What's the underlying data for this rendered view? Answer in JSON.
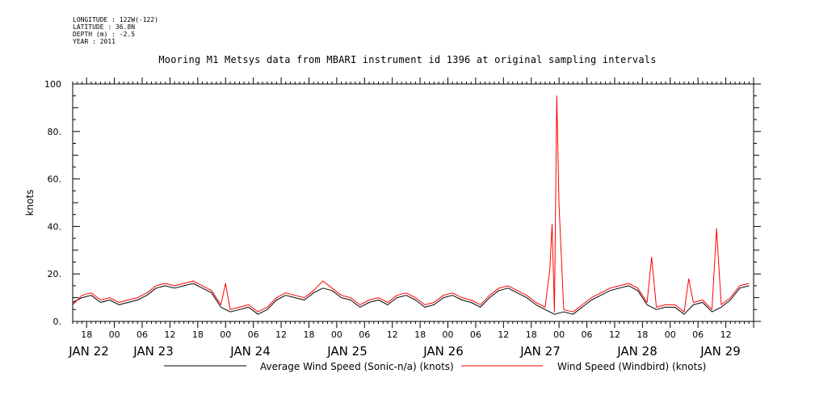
{
  "metadata": {
    "longitude": "LONGITUDE : 122W(-122)",
    "latitude": "LATITUDE : 36.8N",
    "depth": "DEPTH (m) : -2.5",
    "year": "YEAR : 2011"
  },
  "chart_data": {
    "type": "line",
    "title": "Mooring M1 Metsys data from MBARI instrument id 1396 at original sampling intervals",
    "ylabel": "knots",
    "xlabel": "",
    "ylim": [
      0,
      100
    ],
    "xlim_hours": [
      -9,
      138
    ],
    "y_ticks": [
      "0.",
      "20.",
      "40.",
      "60.",
      "80.",
      "100"
    ],
    "x_hour_ticks": [
      {
        "h": -6,
        "label": "18"
      },
      {
        "h": 0,
        "label": "00"
      },
      {
        "h": 6,
        "label": "06"
      },
      {
        "h": 12,
        "label": "12"
      },
      {
        "h": 18,
        "label": "18"
      },
      {
        "h": 24,
        "label": "00"
      },
      {
        "h": 30,
        "label": "06"
      },
      {
        "h": 36,
        "label": "12"
      },
      {
        "h": 42,
        "label": "18"
      },
      {
        "h": 48,
        "label": "00"
      },
      {
        "h": 54,
        "label": "06"
      },
      {
        "h": 60,
        "label": "12"
      },
      {
        "h": 66,
        "label": "18"
      },
      {
        "h": 72,
        "label": "00"
      },
      {
        "h": 78,
        "label": "06"
      },
      {
        "h": 84,
        "label": "12"
      },
      {
        "h": 90,
        "label": "18"
      },
      {
        "h": 96,
        "label": "00"
      },
      {
        "h": 102,
        "label": "06"
      },
      {
        "h": 108,
        "label": "12"
      },
      {
        "h": 114,
        "label": "18"
      },
      {
        "h": 120,
        "label": "00"
      },
      {
        "h": 126,
        "label": "06"
      },
      {
        "h": 132,
        "label": "12"
      }
    ],
    "date_labels": [
      {
        "h": -5,
        "label": "JAN 22"
      },
      {
        "h": 19,
        "label": "JAN 23"
      },
      {
        "h": 43,
        "label": "JAN 24"
      },
      {
        "h": 67,
        "label": "JAN 25"
      },
      {
        "h": 91,
        "label": "JAN 26"
      },
      {
        "h": 115,
        "label": "JAN 27"
      },
      {
        "h": 139,
        "label": "JAN 28"
      },
      {
        "h": 163,
        "label": "JAN 29"
      }
    ],
    "series": [
      {
        "name": "Average Wind Speed (Sonic-n/a) (knots)",
        "color": "#000000",
        "points": [
          [
            -9,
            8
          ],
          [
            -7,
            10
          ],
          [
            -5,
            11
          ],
          [
            -3,
            8
          ],
          [
            -1,
            9
          ],
          [
            1,
            7
          ],
          [
            3,
            8
          ],
          [
            5,
            9
          ],
          [
            7,
            11
          ],
          [
            9,
            14
          ],
          [
            11,
            15
          ],
          [
            13,
            14
          ],
          [
            15,
            15
          ],
          [
            17,
            16
          ],
          [
            19,
            14
          ],
          [
            21,
            12
          ],
          [
            23,
            6
          ],
          [
            25,
            4
          ],
          [
            27,
            5
          ],
          [
            29,
            6
          ],
          [
            31,
            3
          ],
          [
            33,
            5
          ],
          [
            35,
            9
          ],
          [
            37,
            11
          ],
          [
            39,
            10
          ],
          [
            41,
            9
          ],
          [
            43,
            12
          ],
          [
            45,
            14
          ],
          [
            47,
            13
          ],
          [
            49,
            10
          ],
          [
            51,
            9
          ],
          [
            53,
            6
          ],
          [
            55,
            8
          ],
          [
            57,
            9
          ],
          [
            59,
            7
          ],
          [
            61,
            10
          ],
          [
            63,
            11
          ],
          [
            65,
            9
          ],
          [
            67,
            6
          ],
          [
            69,
            7
          ],
          [
            71,
            10
          ],
          [
            73,
            11
          ],
          [
            75,
            9
          ],
          [
            77,
            8
          ],
          [
            79,
            6
          ],
          [
            81,
            10
          ],
          [
            83,
            13
          ],
          [
            85,
            14
          ],
          [
            87,
            12
          ],
          [
            89,
            10
          ],
          [
            91,
            7
          ],
          [
            93,
            5
          ],
          [
            95,
            3
          ],
          [
            97,
            4
          ],
          [
            99,
            3
          ],
          [
            101,
            6
          ],
          [
            103,
            9
          ],
          [
            105,
            11
          ],
          [
            107,
            13
          ],
          [
            109,
            14
          ],
          [
            111,
            15
          ],
          [
            113,
            13
          ],
          [
            115,
            7
          ],
          [
            117,
            5
          ],
          [
            119,
            6
          ],
          [
            121,
            6
          ],
          [
            123,
            3
          ],
          [
            125,
            7
          ],
          [
            127,
            8
          ],
          [
            129,
            4
          ],
          [
            131,
            6
          ],
          [
            133,
            9
          ],
          [
            135,
            14
          ],
          [
            137,
            15
          ]
        ]
      },
      {
        "name": "Wind Speed (Windbird) (knots)",
        "color": "#ff0000",
        "points": [
          [
            -9,
            7
          ],
          [
            -7,
            11
          ],
          [
            -5,
            12
          ],
          [
            -3,
            9
          ],
          [
            -1,
            10
          ],
          [
            1,
            8
          ],
          [
            3,
            9
          ],
          [
            5,
            10
          ],
          [
            7,
            12
          ],
          [
            9,
            15
          ],
          [
            11,
            16
          ],
          [
            13,
            15
          ],
          [
            15,
            16
          ],
          [
            17,
            17
          ],
          [
            19,
            15
          ],
          [
            21,
            13
          ],
          [
            23,
            7
          ],
          [
            24,
            16
          ],
          [
            25,
            5
          ],
          [
            27,
            6
          ],
          [
            29,
            7
          ],
          [
            31,
            4
          ],
          [
            33,
            6
          ],
          [
            35,
            10
          ],
          [
            37,
            12
          ],
          [
            39,
            11
          ],
          [
            41,
            10
          ],
          [
            43,
            13
          ],
          [
            45,
            17
          ],
          [
            47,
            14
          ],
          [
            49,
            11
          ],
          [
            51,
            10
          ],
          [
            53,
            7
          ],
          [
            55,
            9
          ],
          [
            57,
            10
          ],
          [
            59,
            8
          ],
          [
            61,
            11
          ],
          [
            63,
            12
          ],
          [
            65,
            10
          ],
          [
            67,
            7
          ],
          [
            69,
            8
          ],
          [
            71,
            11
          ],
          [
            73,
            12
          ],
          [
            75,
            10
          ],
          [
            77,
            9
          ],
          [
            79,
            7
          ],
          [
            81,
            11
          ],
          [
            83,
            14
          ],
          [
            85,
            15
          ],
          [
            87,
            13
          ],
          [
            89,
            11
          ],
          [
            91,
            8
          ],
          [
            93,
            6
          ],
          [
            94,
            22
          ],
          [
            94.5,
            41
          ],
          [
            95,
            4
          ],
          [
            95.5,
            95
          ],
          [
            96,
            49
          ],
          [
            97,
            5
          ],
          [
            99,
            4
          ],
          [
            101,
            7
          ],
          [
            103,
            10
          ],
          [
            105,
            12
          ],
          [
            107,
            14
          ],
          [
            109,
            15
          ],
          [
            111,
            16
          ],
          [
            113,
            14
          ],
          [
            115,
            8
          ],
          [
            116,
            27
          ],
          [
            117,
            6
          ],
          [
            119,
            7
          ],
          [
            121,
            7
          ],
          [
            123,
            4
          ],
          [
            124,
            18
          ],
          [
            125,
            8
          ],
          [
            127,
            9
          ],
          [
            129,
            5
          ],
          [
            130,
            39
          ],
          [
            131,
            7
          ],
          [
            133,
            10
          ],
          [
            135,
            15
          ],
          [
            137,
            16
          ]
        ]
      }
    ],
    "legend": [
      {
        "label": "Average Wind Speed (Sonic-n/a) (knots)",
        "color": "#000000"
      },
      {
        "label": "Wind Speed (Windbird) (knots)",
        "color": "#ff0000"
      }
    ]
  }
}
